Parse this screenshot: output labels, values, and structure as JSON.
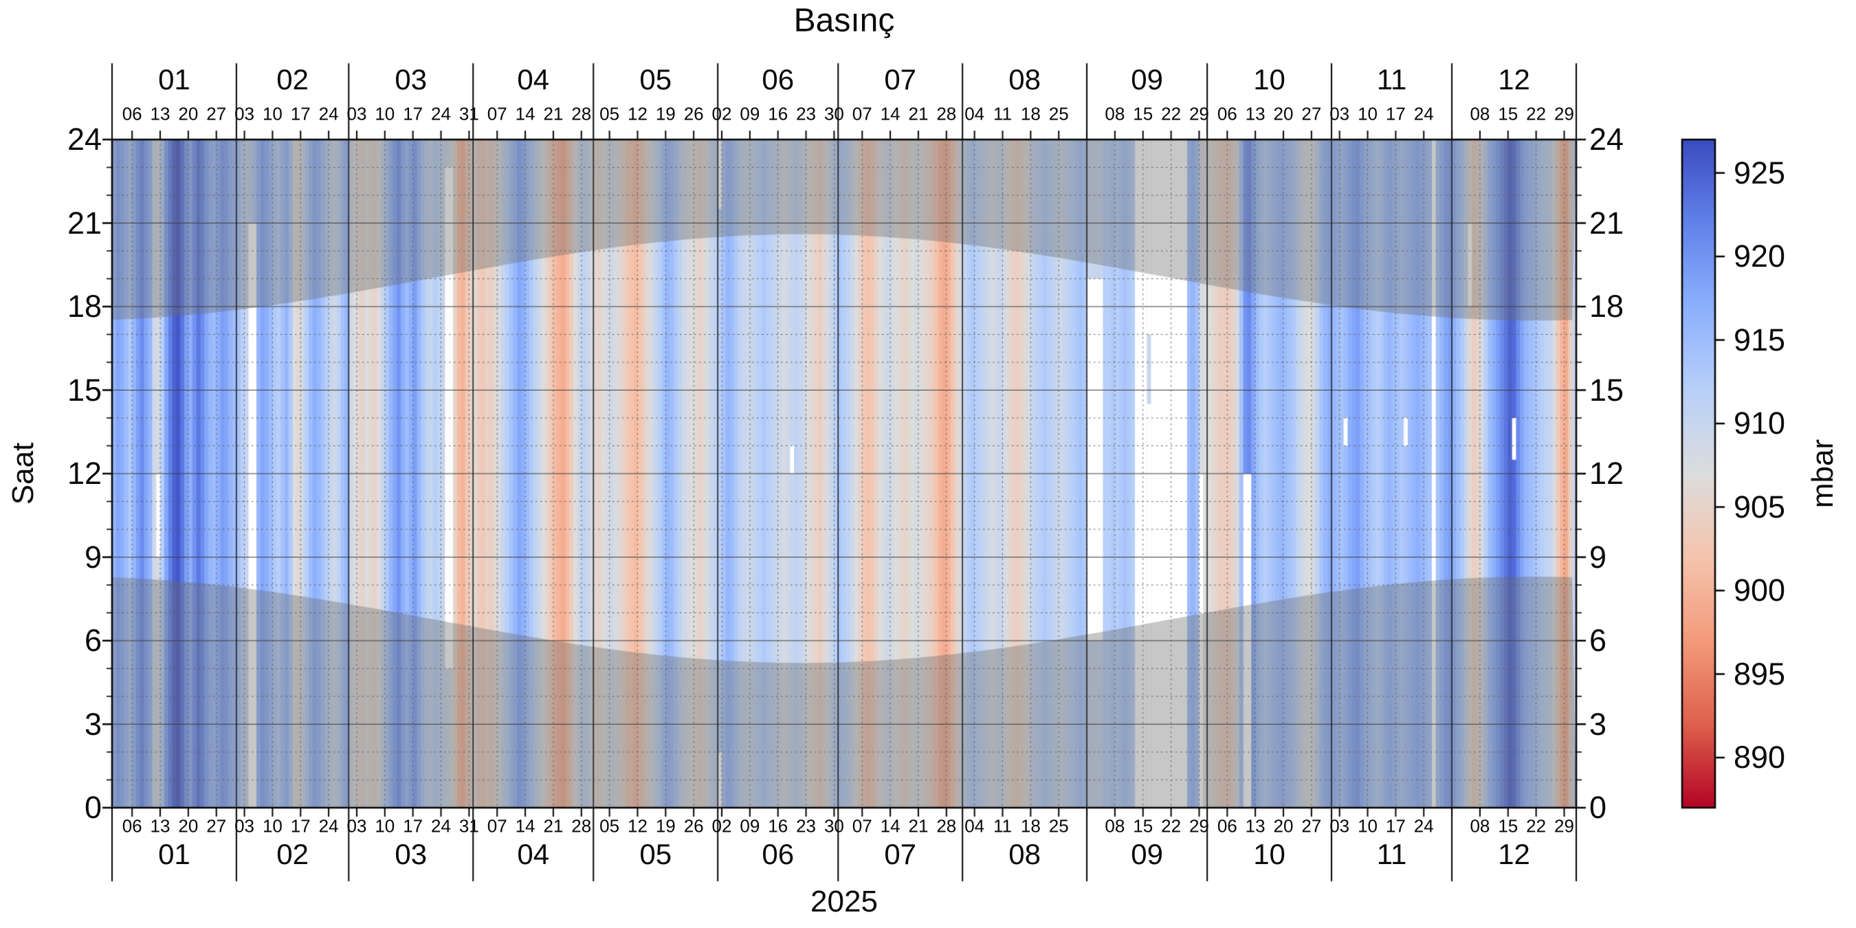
{
  "title": "Basınç",
  "x_axis": {
    "year_label": "2025",
    "month_labels": [
      "01",
      "02",
      "03",
      "04",
      "05",
      "06",
      "07",
      "08",
      "09",
      "10",
      "11",
      "12"
    ],
    "month_start_doy": [
      0,
      31,
      59,
      90,
      120,
      151,
      181,
      212,
      243,
      273,
      304,
      334,
      365
    ],
    "monday_tick_labels": [
      {
        "doy": 5,
        "label": "06"
      },
      {
        "doy": 12,
        "label": "13"
      },
      {
        "doy": 19,
        "label": "20"
      },
      {
        "doy": 26,
        "label": "27"
      },
      {
        "doy": 33,
        "label": "03"
      },
      {
        "doy": 40,
        "label": "10"
      },
      {
        "doy": 47,
        "label": "17"
      },
      {
        "doy": 54,
        "label": "24"
      },
      {
        "doy": 61,
        "label": "03"
      },
      {
        "doy": 68,
        "label": "10"
      },
      {
        "doy": 75,
        "label": "17"
      },
      {
        "doy": 82,
        "label": "24"
      },
      {
        "doy": 89,
        "label": "31"
      },
      {
        "doy": 96,
        "label": "07"
      },
      {
        "doy": 103,
        "label": "14"
      },
      {
        "doy": 110,
        "label": "21"
      },
      {
        "doy": 117,
        "label": "28"
      },
      {
        "doy": 124,
        "label": "05"
      },
      {
        "doy": 131,
        "label": "12"
      },
      {
        "doy": 138,
        "label": "19"
      },
      {
        "doy": 145,
        "label": "26"
      },
      {
        "doy": 152,
        "label": "02"
      },
      {
        "doy": 159,
        "label": "09"
      },
      {
        "doy": 166,
        "label": "16"
      },
      {
        "doy": 173,
        "label": "23"
      },
      {
        "doy": 180,
        "label": "30"
      },
      {
        "doy": 187,
        "label": "07"
      },
      {
        "doy": 194,
        "label": "14"
      },
      {
        "doy": 201,
        "label": "21"
      },
      {
        "doy": 208,
        "label": "28"
      },
      {
        "doy": 215,
        "label": "04"
      },
      {
        "doy": 222,
        "label": "11"
      },
      {
        "doy": 229,
        "label": "18"
      },
      {
        "doy": 236,
        "label": "25"
      },
      {
        "doy": 250,
        "label": "08"
      },
      {
        "doy": 257,
        "label": "15"
      },
      {
        "doy": 264,
        "label": "22"
      },
      {
        "doy": 271,
        "label": "29"
      },
      {
        "doy": 278,
        "label": "06"
      },
      {
        "doy": 285,
        "label": "13"
      },
      {
        "doy": 292,
        "label": "20"
      },
      {
        "doy": 299,
        "label": "27"
      },
      {
        "doy": 306,
        "label": "03"
      },
      {
        "doy": 313,
        "label": "10"
      },
      {
        "doy": 320,
        "label": "17"
      },
      {
        "doy": 327,
        "label": "24"
      },
      {
        "doy": 341,
        "label": "08"
      },
      {
        "doy": 348,
        "label": "15"
      },
      {
        "doy": 355,
        "label": "22"
      },
      {
        "doy": 362,
        "label": "29"
      }
    ],
    "unlabeled_monday_ticks": [
      243,
      334
    ]
  },
  "y_axis": {
    "label": "Saat",
    "ticks": [
      0,
      3,
      6,
      9,
      12,
      15,
      18,
      21,
      24
    ],
    "minor_step": 1,
    "range": [
      0,
      24
    ]
  },
  "colorbar": {
    "label": "mbar",
    "ticks": [
      890,
      895,
      900,
      905,
      910,
      915,
      920,
      925
    ],
    "vmin": 887,
    "vmax": 927,
    "colormap": "coolwarm_reversed"
  },
  "colors": {
    "background": "#ffffff",
    "text": "#0a0a0a",
    "spine": "#000000",
    "major_grid": "#3c3c3c",
    "minor_grid": "#606060",
    "month_line": "#1f1f1f",
    "missing_data": "#ffffff",
    "night_shading": "rgba(108,108,108,0.38)",
    "coolwarm_stops": [
      {
        "t": 0.0,
        "rgb": [
          59,
          76,
          192
        ]
      },
      {
        "t": 0.125,
        "rgb": [
          98,
          130,
          234
        ]
      },
      {
        "t": 0.25,
        "rgb": [
          141,
          176,
          254
        ]
      },
      {
        "t": 0.375,
        "rgb": [
          184,
          208,
          249
        ]
      },
      {
        "t": 0.5,
        "rgb": [
          221,
          221,
          221
        ]
      },
      {
        "t": 0.625,
        "rgb": [
          245,
          196,
          173
        ]
      },
      {
        "t": 0.75,
        "rgb": [
          244,
          154,
          123
        ]
      },
      {
        "t": 0.875,
        "rgb": [
          222,
          96,
          77
        ]
      },
      {
        "t": 1.0,
        "rgb": [
          180,
          4,
          38
        ]
      }
    ]
  },
  "chart_data": {
    "type": "heatmap",
    "title": "Basınç",
    "x_meaning": "day of year 2025 (vertical stripes, one per day)",
    "y_meaning": "hour of day 0-24 (Saat)",
    "values_unit": "mbar",
    "value_range": [
      887,
      927
    ],
    "grid": {
      "horizontal_major_every_hours": 3,
      "horizontal_minor_every_hours": 1,
      "vertical_minor": "weekly (Mondays, dotted)",
      "vertical_major": "month starts (solid)"
    },
    "legend_position": "right colorbar",
    "daily_pressure_mbar": [
      916,
      918,
      917,
      915,
      913,
      916,
      919,
      921,
      918,
      916,
      909,
      908,
      912,
      918,
      922,
      925,
      926,
      923,
      919,
      917,
      920,
      923,
      921,
      918,
      916,
      915,
      917,
      919,
      918,
      916,
      915,
      914,
      912,
      910,
      911,
      913,
      916,
      918,
      917,
      915,
      913,
      912,
      914,
      916,
      913,
      907,
      906,
      909,
      912,
      915,
      917,
      916,
      914,
      912,
      910,
      909,
      911,
      914,
      916,
      909,
      907,
      906,
      905,
      907,
      906,
      905,
      907,
      910,
      913,
      916,
      918,
      920,
      917,
      915,
      917,
      919,
      916,
      913,
      911,
      910,
      912,
      911,
      910,
      909,
      908,
      905,
      901,
      900,
      903,
      905,
      906,
      904,
      903,
      905,
      904,
      906,
      908,
      910,
      912,
      914,
      916,
      918,
      917,
      915,
      913,
      911,
      909,
      907,
      905,
      903,
      901,
      900,
      899,
      901,
      904,
      907,
      909,
      911,
      910,
      908,
      906,
      905,
      907,
      908,
      909,
      908,
      906,
      905,
      903,
      902,
      901,
      902,
      904,
      906,
      908,
      910,
      912,
      914,
      916,
      915,
      913,
      911,
      909,
      908,
      907,
      906,
      905,
      906,
      908,
      910,
      911,
      912,
      914,
      916,
      915,
      913,
      911,
      910,
      909,
      910,
      911,
      912,
      913,
      912,
      911,
      910,
      909,
      908,
      909,
      910,
      911,
      910,
      909,
      907,
      906,
      905,
      904,
      906,
      908,
      910,
      912,
      913,
      912,
      911,
      909,
      907,
      905,
      903,
      902,
      903,
      905,
      907,
      908,
      909,
      908,
      907,
      906,
      905,
      906,
      907,
      908,
      907,
      906,
      905,
      904,
      902,
      900,
      899,
      900,
      902,
      905,
      908,
      910,
      912,
      913,
      912,
      911,
      910,
      909,
      908,
      909,
      910,
      908,
      906,
      905,
      904,
      905,
      906,
      908,
      910,
      911,
      912,
      913,
      912,
      911,
      910,
      909,
      910,
      911,
      912,
      913,
      914,
      913,
      910,
      910,
      910,
      910,
      912,
      912,
      913,
      912,
      913,
      914,
      913,
      912,
      911,
      910,
      912,
      910,
      910,
      910,
      910,
      910,
      910,
      910,
      910,
      910,
      910,
      915,
      916,
      914,
      908,
      907,
      907,
      906,
      905,
      904,
      904,
      904,
      905,
      908,
      914,
      920,
      921,
      918,
      915,
      913,
      912,
      913,
      914,
      915,
      916,
      915,
      914,
      913,
      911,
      909,
      908,
      907,
      908,
      911,
      914,
      916,
      917,
      916,
      915,
      914,
      915,
      917,
      918,
      919,
      917,
      915,
      914,
      913,
      912,
      913,
      915,
      916,
      915,
      914,
      913,
      914,
      915,
      916,
      917,
      916,
      915,
      914,
      913,
      914,
      916,
      918,
      919,
      917,
      915,
      913,
      910,
      906,
      904,
      905,
      908,
      912,
      915,
      917,
      919,
      921,
      923,
      925,
      924,
      921,
      918,
      916,
      915,
      914,
      913,
      912,
      911,
      910,
      908,
      903,
      900,
      899,
      904,
      910
    ],
    "missing_data_segments": [
      {
        "day_start": 11,
        "day_end": 12,
        "hour_start": 9,
        "hour_end": 12
      },
      {
        "day_start": 34,
        "day_end": 36,
        "hour_start": 0,
        "hour_end": 21
      },
      {
        "day_start": 83,
        "day_end": 85,
        "hour_start": 5,
        "hour_end": 23
      },
      {
        "day_start": 151,
        "day_end": 152,
        "hour_start": 21.5,
        "hour_end": 24
      },
      {
        "day_start": 151,
        "day_end": 152,
        "hour_start": 0,
        "hour_end": 2
      },
      {
        "day_start": 169,
        "day_end": 170,
        "hour_start": 12,
        "hour_end": 13
      },
      {
        "day_start": 243,
        "day_end": 247,
        "hour_start": 6,
        "hour_end": 19
      },
      {
        "day_start": 255,
        "day_end": 258,
        "hour_start": 0,
        "hour_end": 24
      },
      {
        "day_start": 258,
        "day_end": 259,
        "hour_start": 0,
        "hour_end": 14.5
      },
      {
        "day_start": 258,
        "day_end": 259,
        "hour_start": 17,
        "hour_end": 24
      },
      {
        "day_start": 259,
        "day_end": 268,
        "hour_start": 0,
        "hour_end": 24
      },
      {
        "day_start": 271,
        "day_end": 272,
        "hour_start": 0,
        "hour_end": 12
      },
      {
        "day_start": 282,
        "day_end": 284,
        "hour_start": 0,
        "hour_end": 12
      },
      {
        "day_start": 307,
        "day_end": 308,
        "hour_start": 13,
        "hour_end": 14
      },
      {
        "day_start": 322,
        "day_end": 323,
        "hour_start": 13,
        "hour_end": 14
      },
      {
        "day_start": 329,
        "day_end": 330,
        "hour_start": 0,
        "hour_end": 24
      },
      {
        "day_start": 338,
        "day_end": 339,
        "hour_start": 18,
        "hour_end": 21
      },
      {
        "day_start": 349,
        "day_end": 350,
        "hour_start": 12.5,
        "hour_end": 14
      }
    ],
    "night_shading": {
      "description": "semi-transparent gray above sunset curve and below sunrise curve",
      "sunrise_hour_min": 5.2,
      "sunrise_hour_max": 8.3,
      "sunset_hour_min": 17.5,
      "sunset_hour_max": 20.6,
      "summer_solstice_doy": 172
    }
  }
}
